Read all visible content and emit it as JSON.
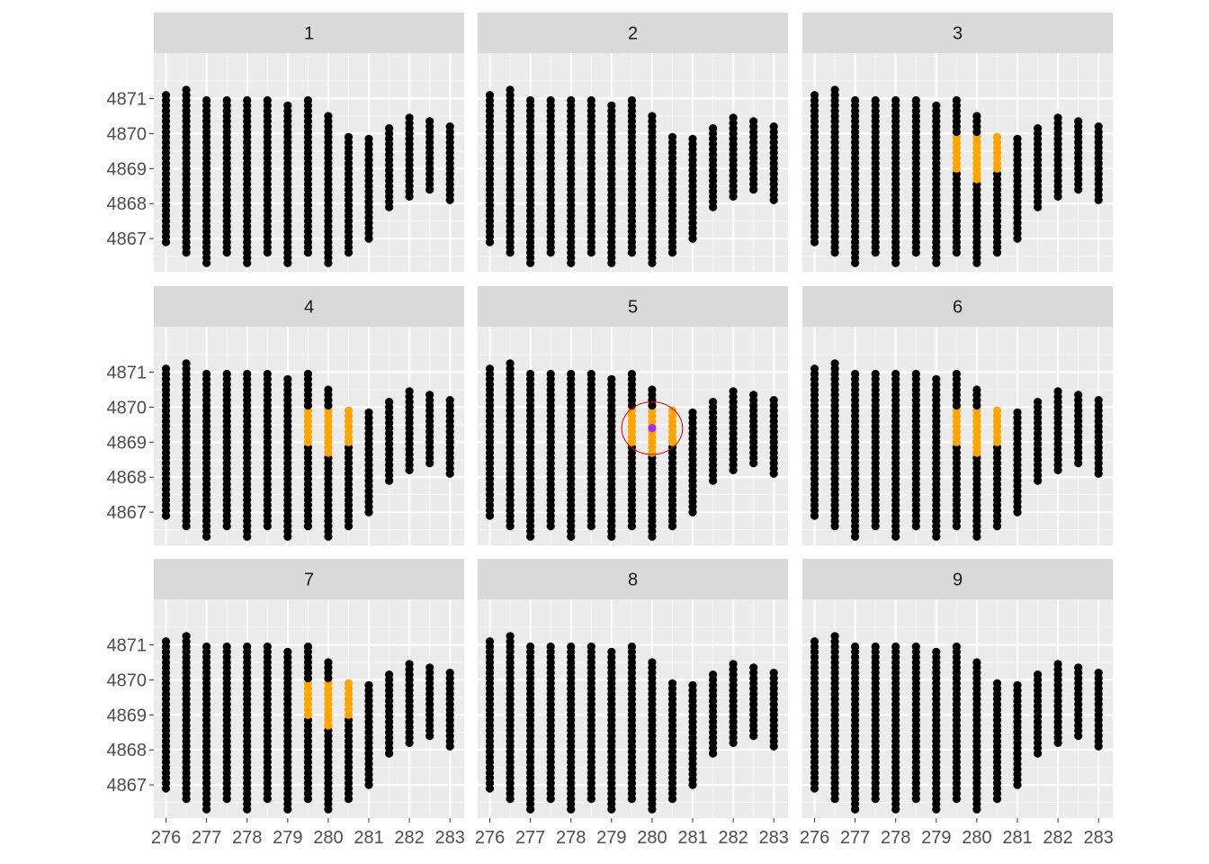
{
  "chart_data": {
    "type": "scatter",
    "layout": "faceted 3x3",
    "facets": [
      "1",
      "2",
      "3",
      "4",
      "5",
      "6",
      "7",
      "8",
      "9"
    ],
    "x_ticks": [
      "276",
      "277",
      "278",
      "279",
      "280",
      "281",
      "282",
      "283"
    ],
    "y_ticks": [
      "4867",
      "4868",
      "4869",
      "4870",
      "4871"
    ],
    "xlim": [
      275.7,
      283.35
    ],
    "ylim": [
      4866.05,
      4872.3
    ],
    "xlabel": "",
    "ylabel": "",
    "title": "",
    "grid": true,
    "point_spacing_y": 0.15,
    "columns": [
      {
        "x": 276.0,
        "ymin": 4866.9,
        "ymax": 4871.1
      },
      {
        "x": 276.5,
        "ymin": 4866.6,
        "ymax": 4871.2
      },
      {
        "x": 277.0,
        "ymin": 4866.3,
        "ymax": 4870.9
      },
      {
        "x": 277.5,
        "ymin": 4866.6,
        "ymax": 4870.9
      },
      {
        "x": 278.0,
        "ymin": 4866.3,
        "ymax": 4870.9
      },
      {
        "x": 278.5,
        "ymin": 4866.6,
        "ymax": 4870.9
      },
      {
        "x": 279.0,
        "ymin": 4866.3,
        "ymax": 4870.8
      },
      {
        "x": 279.5,
        "ymin": 4866.6,
        "ymax": 4870.9
      },
      {
        "x": 280.0,
        "ymin": 4866.3,
        "ymax": 4870.5
      },
      {
        "x": 280.5,
        "ymin": 4866.6,
        "ymax": 4869.9
      },
      {
        "x": 281.0,
        "ymin": 4867.0,
        "ymax": 4869.9
      },
      {
        "x": 281.5,
        "ymin": 4867.9,
        "ymax": 4870.2
      },
      {
        "x": 282.0,
        "ymin": 4868.2,
        "ymax": 4870.5
      },
      {
        "x": 282.5,
        "ymin": 4868.4,
        "ymax": 4870.3
      },
      {
        "x": 283.0,
        "ymin": 4868.1,
        "ymax": 4870.2
      }
    ],
    "highlights": [
      {
        "facet": "3",
        "color": "#FFA500",
        "columns": [
          {
            "x": 279.5,
            "ymin": 4869.0,
            "ymax": 4869.9
          },
          {
            "x": 280.0,
            "ymin": 4868.7,
            "ymax": 4870.0
          },
          {
            "x": 280.5,
            "ymin": 4869.0,
            "ymax": 4869.9
          }
        ]
      },
      {
        "facet": "4",
        "color": "#FFA500",
        "columns": [
          {
            "x": 279.5,
            "ymin": 4869.0,
            "ymax": 4869.9
          },
          {
            "x": 280.0,
            "ymin": 4868.7,
            "ymax": 4870.0
          },
          {
            "x": 280.5,
            "ymin": 4869.0,
            "ymax": 4869.9
          }
        ]
      },
      {
        "facet": "5",
        "color": "#FFA500",
        "columns": [
          {
            "x": 279.5,
            "ymin": 4869.0,
            "ymax": 4869.9
          },
          {
            "x": 280.0,
            "ymin": 4868.7,
            "ymax": 4870.0
          },
          {
            "x": 280.5,
            "ymin": 4869.0,
            "ymax": 4869.9
          }
        ]
      },
      {
        "facet": "6",
        "color": "#FFA500",
        "columns": [
          {
            "x": 279.5,
            "ymin": 4869.0,
            "ymax": 4869.9
          },
          {
            "x": 280.0,
            "ymin": 4868.7,
            "ymax": 4870.0
          },
          {
            "x": 280.5,
            "ymin": 4869.0,
            "ymax": 4869.9
          }
        ]
      },
      {
        "facet": "7",
        "color": "#FFA500",
        "columns": [
          {
            "x": 279.5,
            "ymin": 4869.0,
            "ymax": 4869.9
          },
          {
            "x": 280.0,
            "ymin": 4868.7,
            "ymax": 4870.0
          },
          {
            "x": 280.5,
            "ymin": 4869.0,
            "ymax": 4869.9
          }
        ]
      }
    ],
    "center_point": {
      "facet": "5",
      "x": 280.0,
      "y": 4869.4,
      "color": "#9B30FF"
    },
    "circle": {
      "facet": "5",
      "x": 280.0,
      "y": 4869.4,
      "radius": 0.75,
      "color": "#CC0000"
    },
    "colors": {
      "point": "#000000",
      "highlight": "#FFA500",
      "center": "#9B30FF",
      "circle": "#CC0000",
      "panel_background": "#EBEBEB",
      "strip_background": "#D9D9D9",
      "grid": "#FFFFFF",
      "axis_text": "#4D4D4D",
      "strip_text": "#1A1A1A"
    }
  }
}
